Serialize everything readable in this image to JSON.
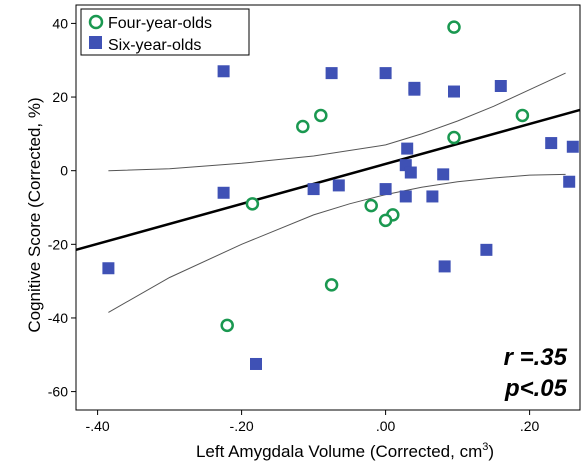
{
  "chart_data": {
    "type": "scatter",
    "xlabel": "Left Amygdala Volume (Corrected, cm",
    "xlabel_sup": "3",
    "xlabel_end": ")",
    "ylabel": "Cognitive Score (Corrected, %)",
    "xlim": [
      -0.43,
      0.27
    ],
    "ylim": [
      -65,
      45
    ],
    "x_ticks": [
      -0.4,
      -0.2,
      0.0,
      0.2
    ],
    "x_tick_labels": [
      "-.40",
      "-.20",
      ".00",
      ".20"
    ],
    "y_ticks": [
      40,
      20,
      0,
      -20,
      -40,
      -60
    ],
    "y_tick_labels": [
      "40",
      "20",
      "0",
      "-20",
      "-40",
      "-60"
    ],
    "grid": false,
    "legend_position": "top-left",
    "annotation": {
      "r_text": "r =.35",
      "p_text": "p<.05"
    },
    "colors": {
      "four": "#1a9850",
      "six": "#3f51b5",
      "fit": "#000000",
      "ci": "#555555"
    },
    "series": [
      {
        "name": "Four-year-olds",
        "marker": "open-circle",
        "points": [
          [
            0.095,
            39
          ],
          [
            -0.09,
            15
          ],
          [
            -0.115,
            12
          ],
          [
            0.19,
            15
          ],
          [
            0.095,
            9
          ],
          [
            -0.185,
            -9
          ],
          [
            -0.02,
            -9.5
          ],
          [
            0.01,
            -12
          ],
          [
            0.0,
            -13.5
          ],
          [
            -0.075,
            -31
          ],
          [
            -0.22,
            -42
          ]
        ]
      },
      {
        "name": "Six-year-olds",
        "marker": "filled-square",
        "points": [
          [
            -0.225,
            27
          ],
          [
            -0.075,
            26.5
          ],
          [
            0.0,
            26.5
          ],
          [
            0.04,
            22.5
          ],
          [
            0.04,
            22
          ],
          [
            0.095,
            21.5
          ],
          [
            0.16,
            23
          ],
          [
            0.23,
            7.5
          ],
          [
            0.26,
            6.5
          ],
          [
            0.03,
            6
          ],
          [
            0.028,
            1.5
          ],
          [
            0.035,
            -0.5
          ],
          [
            0.08,
            -1
          ],
          [
            0.065,
            -7
          ],
          [
            0.028,
            -7
          ],
          [
            0.0,
            -5
          ],
          [
            -0.065,
            -4
          ],
          [
            -0.1,
            -5
          ],
          [
            -0.225,
            -6
          ],
          [
            0.255,
            -3
          ],
          [
            0.14,
            -21.5
          ],
          [
            0.082,
            -26
          ],
          [
            -0.385,
            -26.5
          ],
          [
            -0.18,
            -52.5
          ]
        ]
      }
    ],
    "fit_line": {
      "x": [
        -0.43,
        0.27
      ],
      "y": [
        -21.5,
        16.5
      ]
    },
    "ci_upper": {
      "x": [
        -0.385,
        -0.3,
        -0.2,
        -0.1,
        0.0,
        0.05,
        0.1,
        0.15,
        0.2,
        0.25
      ],
      "y": [
        0,
        0.5,
        2,
        4,
        7,
        10,
        13.5,
        17.5,
        22,
        26.5
      ]
    },
    "ci_lower": {
      "x": [
        -0.385,
        -0.3,
        -0.2,
        -0.1,
        -0.05,
        0.0,
        0.05,
        0.1,
        0.15,
        0.2,
        0.25
      ],
      "y": [
        -38.5,
        -29,
        -20,
        -12,
        -9,
        -6.5,
        -4.5,
        -3,
        -2,
        -1.2,
        -1
      ]
    }
  }
}
